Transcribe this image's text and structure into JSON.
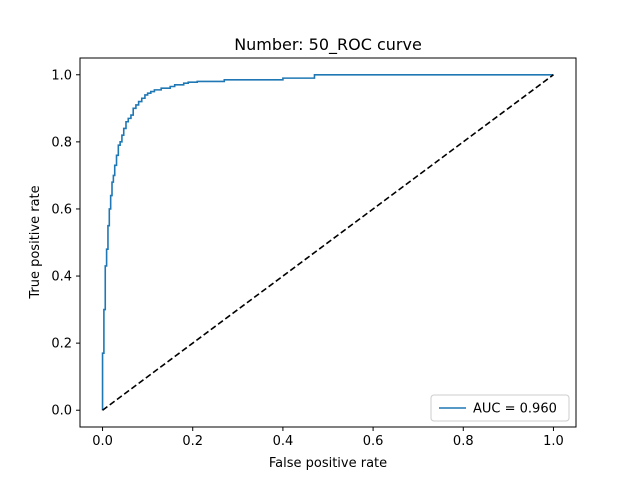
{
  "chart_data": {
    "type": "line",
    "title": "Number: 50_ROC curve",
    "xlabel": "False positive rate",
    "ylabel": "True positive rate",
    "xlim": [
      -0.05,
      1.05
    ],
    "ylim": [
      -0.05,
      1.05
    ],
    "xticks": [
      0.0,
      0.2,
      0.4,
      0.6,
      0.8,
      1.0
    ],
    "yticks": [
      0.0,
      0.2,
      0.4,
      0.6,
      0.8,
      1.0
    ],
    "tick_labels": [
      "0.0",
      "0.2",
      "0.4",
      "0.6",
      "0.8",
      "1.0"
    ],
    "grid": false,
    "legend_position": "lower-right",
    "series": [
      {
        "name": "AUC = 0.960",
        "color": "#1f77b4",
        "style": "step",
        "x": [
          0.0,
          0.0,
          0.003,
          0.003,
          0.006,
          0.006,
          0.009,
          0.009,
          0.012,
          0.012,
          0.015,
          0.015,
          0.018,
          0.018,
          0.021,
          0.021,
          0.024,
          0.024,
          0.027,
          0.027,
          0.031,
          0.031,
          0.035,
          0.035,
          0.039,
          0.039,
          0.043,
          0.043,
          0.047,
          0.047,
          0.052,
          0.052,
          0.057,
          0.057,
          0.063,
          0.063,
          0.068,
          0.068,
          0.074,
          0.074,
          0.08,
          0.08,
          0.087,
          0.087,
          0.094,
          0.094,
          0.1,
          0.1,
          0.107,
          0.107,
          0.115,
          0.115,
          0.13,
          0.13,
          0.15,
          0.15,
          0.16,
          0.16,
          0.18,
          0.18,
          0.19,
          0.19,
          0.21,
          0.21,
          0.27,
          0.27,
          0.4,
          0.4,
          0.47,
          0.47,
          1.0
        ],
        "y": [
          0.0,
          0.17,
          0.17,
          0.3,
          0.3,
          0.43,
          0.43,
          0.48,
          0.48,
          0.55,
          0.55,
          0.6,
          0.6,
          0.64,
          0.64,
          0.68,
          0.68,
          0.7,
          0.7,
          0.73,
          0.73,
          0.76,
          0.76,
          0.79,
          0.79,
          0.8,
          0.8,
          0.82,
          0.82,
          0.84,
          0.84,
          0.86,
          0.86,
          0.87,
          0.87,
          0.88,
          0.88,
          0.9,
          0.9,
          0.91,
          0.91,
          0.92,
          0.92,
          0.93,
          0.93,
          0.94,
          0.94,
          0.945,
          0.945,
          0.95,
          0.95,
          0.955,
          0.955,
          0.96,
          0.96,
          0.965,
          0.965,
          0.97,
          0.97,
          0.975,
          0.975,
          0.978,
          0.978,
          0.98,
          0.98,
          0.985,
          0.985,
          0.99,
          0.99,
          1.0,
          1.0
        ]
      },
      {
        "name": "",
        "color": "#000000",
        "style": "dashed",
        "x": [
          0.0,
          1.0
        ],
        "y": [
          0.0,
          1.0
        ]
      }
    ]
  }
}
